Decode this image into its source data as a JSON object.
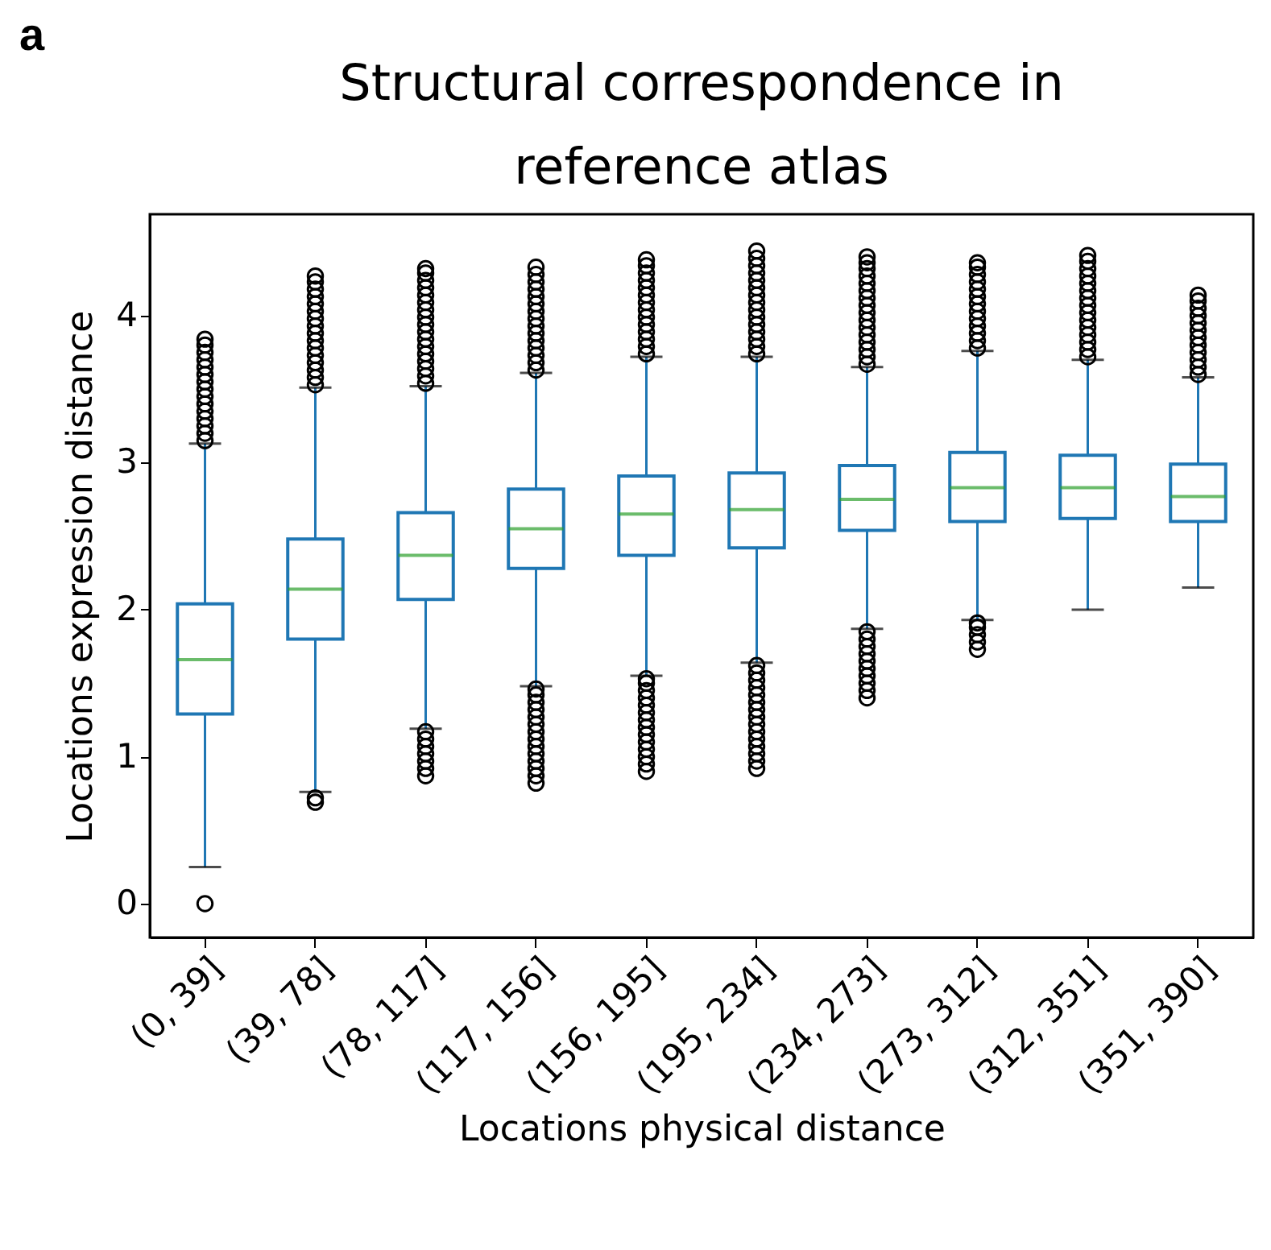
{
  "chart_data": {
    "type": "box",
    "title": "Structural correspondence in reference atlas",
    "xlabel": "Locations physical distance",
    "ylabel": "Locations expression distance",
    "annotations": [
      "a"
    ],
    "categories": [
      "(0, 39]",
      "(39, 78]",
      "(78, 117]",
      "(117, 156]",
      "(156, 195]",
      "(195, 234]",
      "(234, 273]",
      "(273, 312]",
      "(312, 351]",
      "(351, 390]"
    ],
    "ylim": [
      -0.23,
      4.69
    ],
    "yticks": [
      0,
      1,
      2,
      3,
      4
    ],
    "grid": false,
    "series": [
      {
        "color": "#1f77b4",
        "boxes": [
          {
            "low": 0.25,
            "q1": 1.29,
            "median": 1.66,
            "q3": 2.04,
            "high": 3.13,
            "outliers": [
              3.15,
              3.2,
              3.25,
              3.3,
              3.35,
              3.4,
              3.45,
              3.5,
              3.55,
              3.6,
              3.65,
              3.7,
              3.75,
              3.8,
              3.84,
              0.0
            ]
          },
          {
            "low": 0.76,
            "q1": 1.8,
            "median": 2.14,
            "q3": 2.48,
            "high": 3.51,
            "outliers": [
              3.53,
              3.58,
              3.63,
              3.68,
              3.73,
              3.78,
              3.83,
              3.88,
              3.93,
              3.98,
              4.03,
              4.08,
              4.13,
              4.18,
              4.23,
              4.27,
              0.69,
              0.72
            ]
          },
          {
            "low": 1.19,
            "q1": 2.07,
            "median": 2.37,
            "q3": 2.66,
            "high": 3.52,
            "outliers": [
              3.54,
              3.59,
              3.64,
              3.69,
              3.74,
              3.79,
              3.84,
              3.89,
              3.94,
              3.99,
              4.04,
              4.09,
              4.14,
              4.19,
              4.24,
              4.29,
              4.32,
              0.87,
              0.92,
              0.97,
              1.02,
              1.07,
              1.12,
              1.17
            ]
          },
          {
            "low": 1.48,
            "q1": 2.28,
            "median": 2.55,
            "q3": 2.82,
            "high": 3.61,
            "outliers": [
              3.63,
              3.68,
              3.73,
              3.78,
              3.83,
              3.88,
              3.93,
              3.98,
              4.03,
              4.08,
              4.13,
              4.18,
              4.23,
              4.28,
              4.33,
              0.82,
              0.87,
              0.92,
              0.97,
              1.02,
              1.07,
              1.12,
              1.17,
              1.22,
              1.27,
              1.32,
              1.37,
              1.42,
              1.46
            ]
          },
          {
            "low": 1.55,
            "q1": 2.37,
            "median": 2.65,
            "q3": 2.91,
            "high": 3.72,
            "outliers": [
              3.74,
              3.79,
              3.84,
              3.89,
              3.94,
              3.99,
              4.04,
              4.09,
              4.14,
              4.19,
              4.24,
              4.29,
              4.34,
              4.38,
              0.9,
              0.95,
              1.0,
              1.05,
              1.1,
              1.15,
              1.2,
              1.25,
              1.3,
              1.35,
              1.4,
              1.45,
              1.5,
              1.53
            ]
          },
          {
            "low": 1.64,
            "q1": 2.42,
            "median": 2.68,
            "q3": 2.93,
            "high": 3.72,
            "outliers": [
              3.74,
              3.79,
              3.84,
              3.89,
              3.94,
              3.99,
              4.04,
              4.09,
              4.14,
              4.19,
              4.24,
              4.29,
              4.34,
              4.39,
              4.44,
              0.92,
              0.97,
              1.02,
              1.07,
              1.12,
              1.17,
              1.22,
              1.27,
              1.32,
              1.37,
              1.42,
              1.47,
              1.52,
              1.57,
              1.62
            ]
          },
          {
            "low": 1.87,
            "q1": 2.54,
            "median": 2.75,
            "q3": 2.98,
            "high": 3.65,
            "outliers": [
              3.67,
              3.72,
              3.77,
              3.82,
              3.87,
              3.92,
              3.97,
              4.02,
              4.07,
              4.12,
              4.17,
              4.22,
              4.27,
              4.32,
              4.36,
              4.4,
              1.4,
              1.45,
              1.5,
              1.55,
              1.6,
              1.65,
              1.7,
              1.75,
              1.8,
              1.85
            ]
          },
          {
            "low": 1.93,
            "q1": 2.6,
            "median": 2.83,
            "q3": 3.07,
            "high": 3.76,
            "outliers": [
              3.78,
              3.83,
              3.88,
              3.93,
              3.98,
              4.03,
              4.08,
              4.13,
              4.18,
              4.23,
              4.28,
              4.33,
              4.36,
              1.73,
              1.78,
              1.83,
              1.88,
              1.91
            ]
          },
          {
            "low": 2.0,
            "q1": 2.62,
            "median": 2.83,
            "q3": 3.05,
            "high": 3.7,
            "outliers": [
              3.72,
              3.77,
              3.82,
              3.87,
              3.92,
              3.97,
              4.02,
              4.07,
              4.12,
              4.17,
              4.22,
              4.27,
              4.32,
              4.37,
              4.41
            ]
          },
          {
            "low": 2.15,
            "q1": 2.6,
            "median": 2.77,
            "q3": 2.99,
            "high": 3.58,
            "outliers": [
              3.6,
              3.65,
              3.7,
              3.75,
              3.8,
              3.85,
              3.9,
              3.95,
              4.0,
              4.05,
              4.1,
              4.14
            ]
          }
        ]
      }
    ]
  }
}
